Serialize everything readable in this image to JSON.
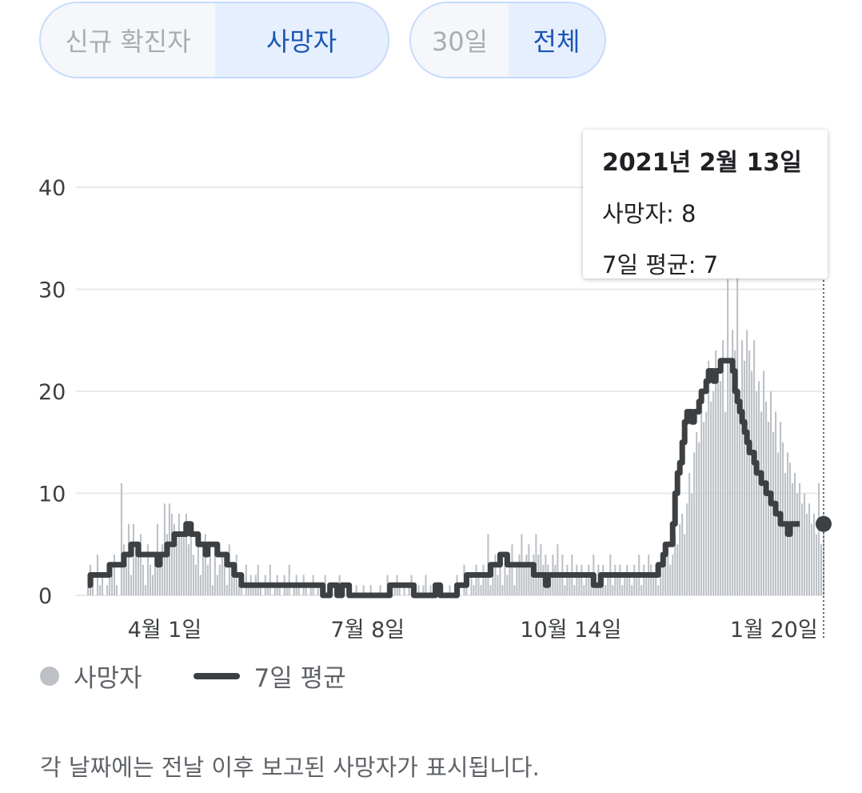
{
  "toggles": {
    "metric": {
      "options": [
        "신규 확진자",
        "사망자"
      ],
      "selected": 1
    },
    "range": {
      "options": [
        "30일",
        "전체"
      ],
      "selected": 1
    }
  },
  "tooltip": {
    "date": "2021년 2월 13일",
    "deaths_label": "사망자: 8",
    "avg_label": "7일 평균: 7"
  },
  "legend": {
    "bars": "사망자",
    "line": "7일 평균"
  },
  "footnote": "각 날짜에는 전날 이후 보고된 사망자가 표시됩니다.",
  "colors": {
    "bars": "#bdc1c6",
    "line": "#3c4043",
    "grid": "#e8eaed",
    "accent": "#1a56b4"
  },
  "chart_data": {
    "type": "bar",
    "ylim": [
      0,
      40
    ],
    "yticks": [
      0,
      10,
      20,
      30,
      40
    ],
    "x_range": [
      "2020-02-24",
      "2021-02-13"
    ],
    "xticks": [
      {
        "label": "4월 1일",
        "date": "2020-04-01"
      },
      {
        "label": "7월 8일",
        "date": "2020-07-08"
      },
      {
        "label": "10월 14일",
        "date": "2020-10-14"
      },
      {
        "label": "1월 20일",
        "date": "2021-01-20"
      }
    ],
    "series": [
      {
        "name": "사망자",
        "type": "bar",
        "values": [
          1,
          3,
          2,
          0,
          4,
          1,
          2,
          0,
          1,
          3,
          2,
          4,
          1,
          0,
          11,
          5,
          3,
          7,
          2,
          7,
          5,
          4,
          6,
          3,
          1,
          5,
          3,
          2,
          4,
          7,
          3,
          5,
          9,
          6,
          9,
          8,
          7,
          5,
          8,
          6,
          7,
          8,
          5,
          6,
          4,
          3,
          5,
          2,
          4,
          6,
          3,
          4,
          1,
          5,
          2,
          3,
          4,
          3,
          1,
          5,
          3,
          2,
          4,
          1,
          2,
          0,
          3,
          1,
          2,
          1,
          2,
          3,
          1,
          0,
          2,
          1,
          3,
          0,
          1,
          2,
          1,
          0,
          2,
          1,
          3,
          0,
          1,
          2,
          1,
          0,
          2,
          1,
          0,
          1,
          2,
          0,
          1,
          0,
          1,
          2,
          0,
          1,
          0,
          1,
          0,
          2,
          0,
          1,
          0,
          1,
          0,
          0,
          1,
          0,
          0,
          1,
          0,
          0,
          1,
          0,
          0,
          0,
          1,
          0,
          0,
          2,
          1,
          0,
          1,
          2,
          1,
          0,
          1,
          0,
          1,
          2,
          1,
          0,
          1,
          0,
          1,
          2,
          0,
          1,
          0,
          0,
          1,
          0,
          1,
          0,
          0,
          1,
          0,
          0,
          2,
          1,
          0,
          3,
          1,
          0,
          2,
          1,
          3,
          2,
          1,
          3,
          2,
          6,
          1,
          3,
          4,
          2,
          3,
          1,
          4,
          2,
          3,
          5,
          1,
          3,
          4,
          6,
          3,
          4,
          5,
          3,
          4,
          6,
          4,
          5,
          3,
          4,
          3,
          2,
          4,
          3,
          5,
          2,
          4,
          1,
          3,
          2,
          4,
          1,
          3,
          2,
          3,
          1,
          2,
          3,
          2,
          4,
          1,
          3,
          2,
          3,
          1,
          2,
          4,
          1,
          3,
          2,
          3,
          1,
          2,
          3,
          2,
          1,
          3,
          2,
          4,
          1,
          3,
          2,
          4,
          3,
          2,
          3,
          1,
          2,
          3,
          4,
          5,
          3,
          4,
          6,
          5,
          7,
          8,
          6,
          9,
          12,
          10,
          14,
          16,
          15,
          20,
          17,
          18,
          23,
          19,
          20,
          24,
          22,
          21,
          25,
          18,
          31,
          22,
          26,
          24,
          32,
          20,
          25,
          23,
          26,
          24,
          22,
          25,
          20,
          21,
          18,
          22,
          19,
          17,
          20,
          16,
          18,
          14,
          17,
          15,
          12,
          14,
          13,
          11,
          12,
          10,
          11,
          9,
          10,
          8,
          9,
          7,
          8,
          6,
          11,
          5,
          8
        ],
        "color": "#bdc1c6"
      },
      {
        "name": "7일 평균",
        "type": "line",
        "values": [
          1,
          2,
          2,
          2,
          2,
          2,
          2,
          2,
          2,
          3,
          3,
          3,
          3,
          3,
          3,
          4,
          4,
          4,
          5,
          5,
          5,
          4,
          4,
          4,
          4,
          4,
          4,
          4,
          4,
          3,
          4,
          4,
          4,
          5,
          5,
          5,
          6,
          6,
          6,
          6,
          6,
          7,
          7,
          6,
          6,
          6,
          5,
          5,
          5,
          4,
          5,
          5,
          5,
          5,
          4,
          4,
          4,
          4,
          3,
          3,
          3,
          2,
          2,
          2,
          1,
          1,
          1,
          1,
          1,
          1,
          1,
          1,
          1,
          1,
          1,
          1,
          1,
          1,
          1,
          1,
          1,
          1,
          1,
          1,
          1,
          1,
          1,
          1,
          1,
          1,
          1,
          1,
          1,
          1,
          1,
          1,
          1,
          1,
          0,
          0,
          0,
          1,
          1,
          1,
          0,
          0,
          1,
          1,
          1,
          0,
          0,
          0,
          0,
          0,
          0,
          0,
          0,
          0,
          0,
          0,
          0,
          0,
          0,
          0,
          0,
          0,
          1,
          1,
          1,
          1,
          1,
          1,
          1,
          1,
          1,
          1,
          0,
          0,
          0,
          0,
          0,
          0,
          0,
          0,
          0,
          1,
          1,
          0,
          0,
          0,
          0,
          0,
          0,
          0,
          1,
          1,
          1,
          1,
          2,
          2,
          2,
          2,
          2,
          2,
          2,
          2,
          2,
          2,
          3,
          3,
          3,
          3,
          4,
          4,
          4,
          3,
          3,
          3,
          3,
          3,
          3,
          3,
          3,
          3,
          3,
          3,
          2,
          2,
          2,
          2,
          2,
          1,
          2,
          2,
          2,
          2,
          2,
          2,
          2,
          2,
          2,
          2,
          2,
          2,
          2,
          2,
          2,
          2,
          2,
          2,
          2,
          1,
          1,
          1,
          2,
          2,
          2,
          2,
          2,
          2,
          2,
          2,
          2,
          2,
          2,
          2,
          2,
          2,
          2,
          2,
          2,
          2,
          2,
          2,
          2,
          2,
          2,
          2,
          3,
          3,
          4,
          5,
          5,
          5,
          7,
          10,
          12,
          13,
          15,
          17,
          18,
          18,
          17,
          18,
          18,
          19,
          20,
          20,
          21,
          22,
          22,
          21,
          22,
          22,
          23,
          23,
          23,
          23,
          23,
          22,
          20,
          19,
          18,
          17,
          16,
          15,
          14,
          14,
          13,
          12,
          12,
          11,
          11,
          10,
          10,
          9,
          9,
          8,
          8,
          7,
          7,
          7,
          6,
          7,
          7,
          7,
          7,
          7
        ]
      }
    ],
    "highlight": {
      "date": "2021-02-13",
      "deaths": 8,
      "avg": 7
    }
  }
}
